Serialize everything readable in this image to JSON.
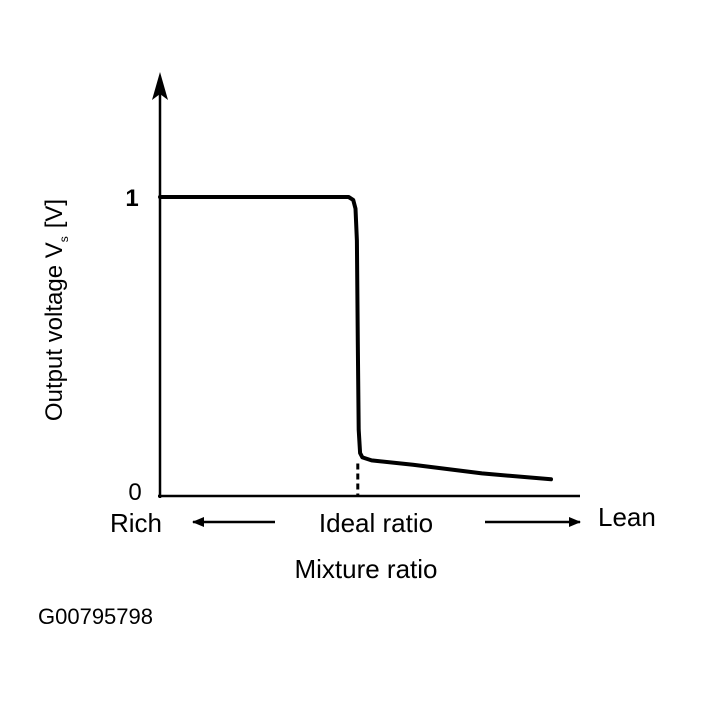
{
  "figure_id": "G00795798",
  "chart_data": {
    "type": "line",
    "title": "",
    "xlabel": "Mixture ratio",
    "ylabel": "Output voltage V",
    "ylabel_subscript": "s",
    "ylabel_unit": "[V]",
    "x_categories": {
      "rich": "Rich",
      "ideal": "Ideal ratio",
      "lean": "Lean"
    },
    "yticks": [
      {
        "value": 0,
        "label": "0"
      },
      {
        "value": 1,
        "label": "1"
      }
    ],
    "xlim": [
      0,
      1
    ],
    "ylim": [
      0,
      1.35
    ],
    "ideal_marker_x": 0.43,
    "series": [
      {
        "x": [
          0,
          0.41,
          0.42,
          0.425,
          0.428,
          0.43,
          0.432,
          0.435,
          0.44,
          0.46,
          0.55,
          0.7,
          0.85
        ],
        "y": [
          1,
          1,
          0.99,
          0.96,
          0.85,
          0.5,
          0.2,
          0.12,
          0.105,
          0.095,
          0.08,
          0.05,
          0.03
        ]
      }
    ],
    "grid": false,
    "legend": "none"
  }
}
